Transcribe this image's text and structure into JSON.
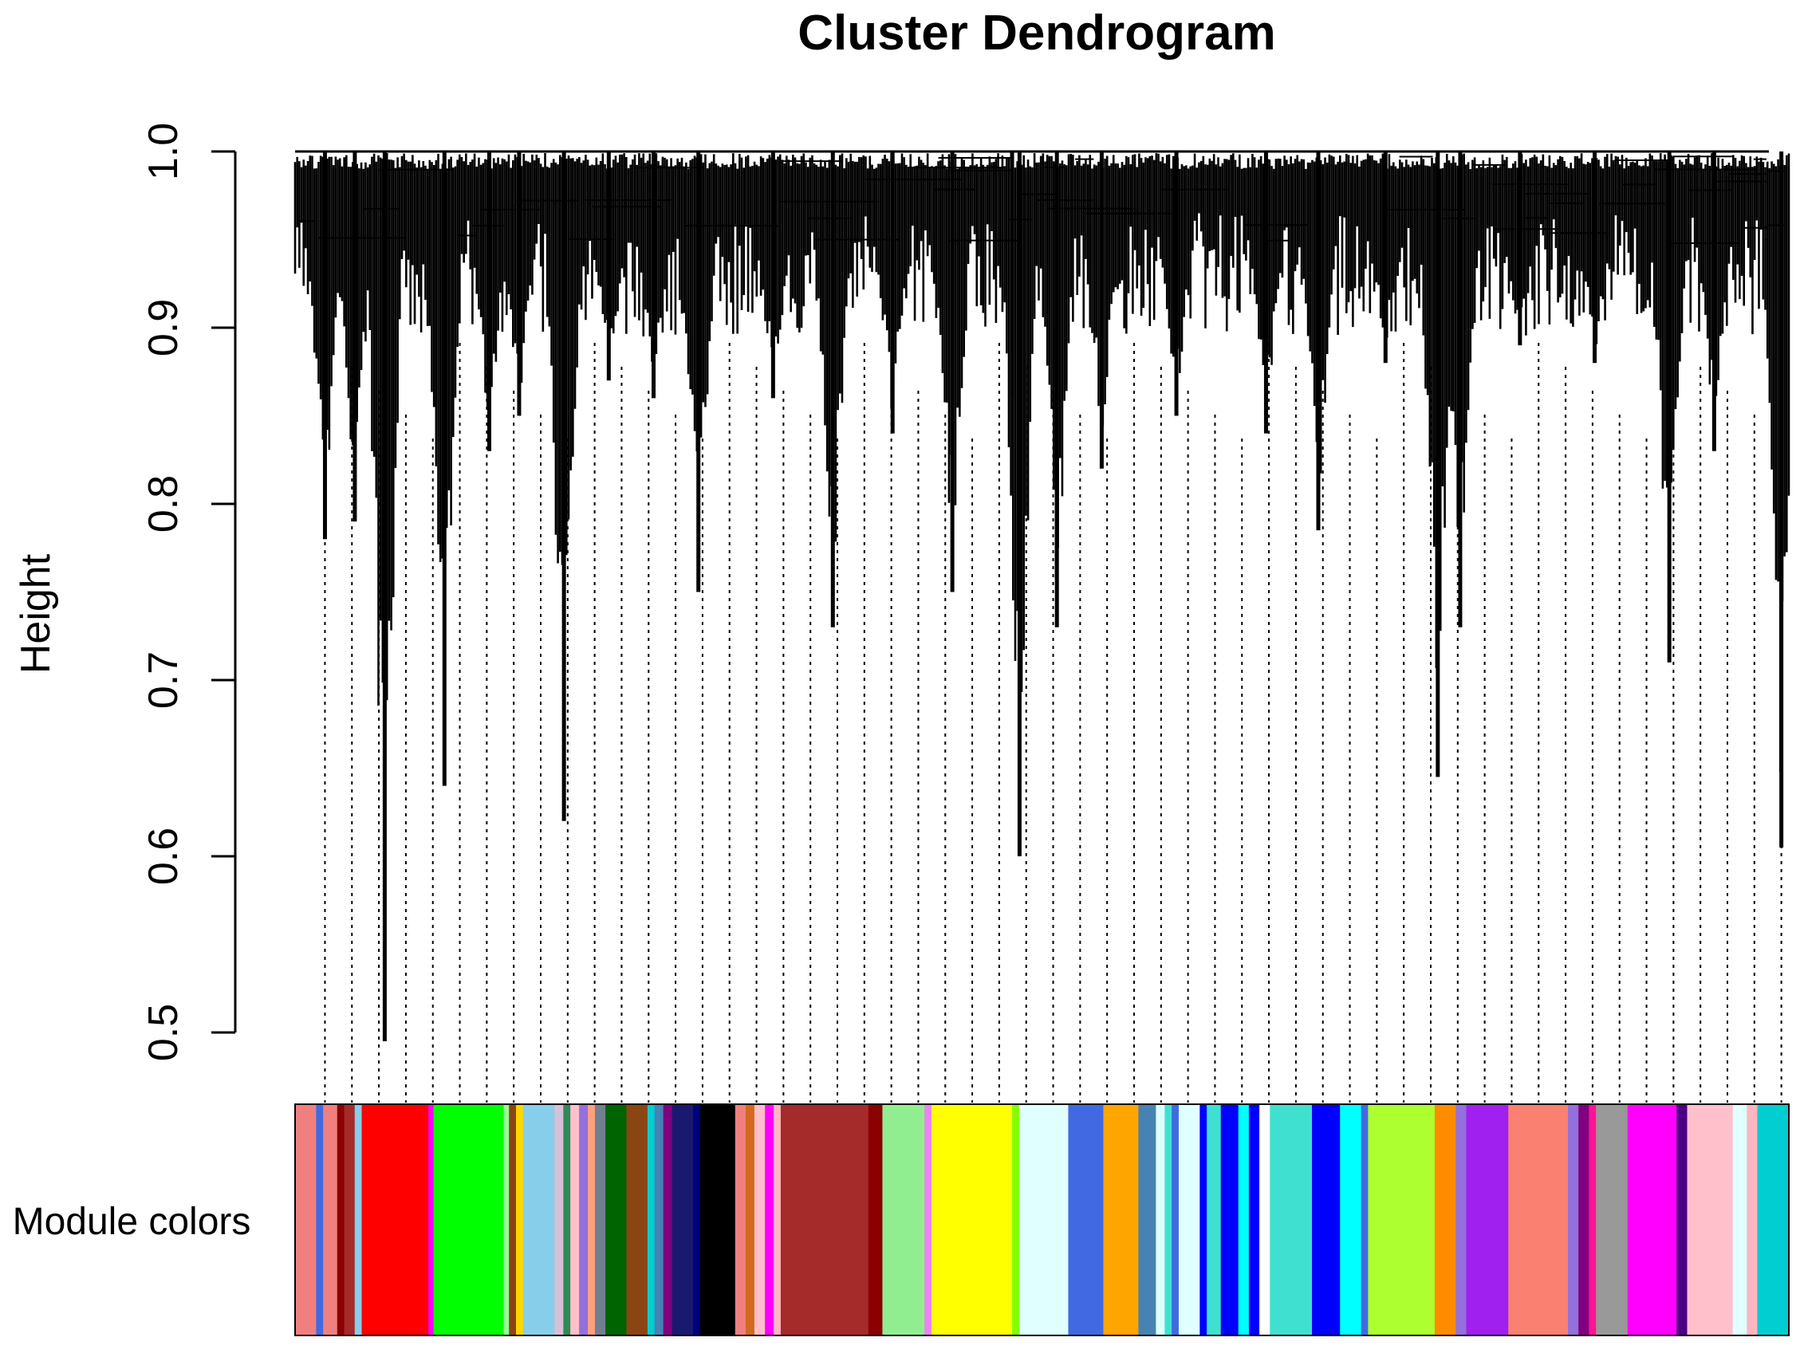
{
  "chart_data": {
    "type": "dendrogram",
    "title": "Cluster Dendrogram",
    "ylabel": "Height",
    "xlabel": "",
    "ylim": [
      0.5,
      1.0
    ],
    "yticks": [
      0.5,
      0.6,
      0.7,
      0.8,
      0.9,
      1.0
    ],
    "ytick_labels": [
      "0.5",
      "0.6",
      "0.7",
      "0.8",
      "0.9",
      "1.0"
    ],
    "merge_height_top": 1.0,
    "colorbar_label": "Module colors",
    "branches": [
      {
        "x": 0.02,
        "min": 0.78
      },
      {
        "x": 0.04,
        "min": 0.79
      },
      {
        "x": 0.06,
        "min": 0.495
      },
      {
        "x": 0.1,
        "min": 0.64
      },
      {
        "x": 0.13,
        "min": 0.83
      },
      {
        "x": 0.15,
        "min": 0.85
      },
      {
        "x": 0.18,
        "min": 0.62
      },
      {
        "x": 0.21,
        "min": 0.87
      },
      {
        "x": 0.24,
        "min": 0.86
      },
      {
        "x": 0.27,
        "min": 0.75
      },
      {
        "x": 0.32,
        "min": 0.86
      },
      {
        "x": 0.36,
        "min": 0.73
      },
      {
        "x": 0.4,
        "min": 0.84
      },
      {
        "x": 0.44,
        "min": 0.75
      },
      {
        "x": 0.48,
        "min": 0.86
      },
      {
        "x": 0.485,
        "min": 0.6
      },
      {
        "x": 0.51,
        "min": 0.73
      },
      {
        "x": 0.54,
        "min": 0.82
      },
      {
        "x": 0.59,
        "min": 0.85
      },
      {
        "x": 0.65,
        "min": 0.84
      },
      {
        "x": 0.685,
        "min": 0.785
      },
      {
        "x": 0.73,
        "min": 0.88
      },
      {
        "x": 0.765,
        "min": 0.645
      },
      {
        "x": 0.78,
        "min": 0.73
      },
      {
        "x": 0.82,
        "min": 0.89
      },
      {
        "x": 0.87,
        "min": 0.88
      },
      {
        "x": 0.92,
        "min": 0.71
      },
      {
        "x": 0.95,
        "min": 0.83
      },
      {
        "x": 0.995,
        "min": 0.605
      }
    ],
    "module_colors": [
      {
        "color": "#f08080",
        "width": 1.2
      },
      {
        "color": "#4169e1",
        "width": 0.4
      },
      {
        "color": "#f08080",
        "width": 0.8
      },
      {
        "color": "#8b0000",
        "width": 0.4
      },
      {
        "color": "#a52a2a",
        "width": 0.6
      },
      {
        "color": "#87ceeb",
        "width": 0.4
      },
      {
        "color": "#ff0000",
        "width": 3.8
      },
      {
        "color": "#ff00ff",
        "width": 0.3
      },
      {
        "color": "#00ff00",
        "width": 4.0
      },
      {
        "color": "#98fb98",
        "width": 0.3
      },
      {
        "color": "#8b4513",
        "width": 0.4
      },
      {
        "color": "#ffd700",
        "width": 0.4
      },
      {
        "color": "#87ceeb",
        "width": 1.8
      },
      {
        "color": "#d8bfd8",
        "width": 0.5
      },
      {
        "color": "#2e8b57",
        "width": 0.4
      },
      {
        "color": "#ffc0cb",
        "width": 0.5
      },
      {
        "color": "#9370db",
        "width": 0.5
      },
      {
        "color": "#ffa07a",
        "width": 0.4
      },
      {
        "color": "#708090",
        "width": 0.6
      },
      {
        "color": "#006400",
        "width": 1.2
      },
      {
        "color": "#8b4513",
        "width": 1.2
      },
      {
        "color": "#00ced1",
        "width": 0.4
      },
      {
        "color": "#4682b4",
        "width": 0.5
      },
      {
        "color": "#800080",
        "width": 0.5
      },
      {
        "color": "#191970",
        "width": 1.2
      },
      {
        "color": "#000080",
        "width": 0.4
      },
      {
        "color": "#000000",
        "width": 2.0
      },
      {
        "color": "#f08080",
        "width": 0.6
      },
      {
        "color": "#d2691e",
        "width": 0.5
      },
      {
        "color": "#ffc0cb",
        "width": 0.6
      },
      {
        "color": "#ff00ff",
        "width": 0.5
      },
      {
        "color": "#ffb6c1",
        "width": 0.4
      },
      {
        "color": "#a52a2a",
        "width": 5.0
      },
      {
        "color": "#8b0000",
        "width": 0.8
      },
      {
        "color": "#90ee90",
        "width": 2.4
      },
      {
        "color": "#ee82ee",
        "width": 0.4
      },
      {
        "color": "#ffff00",
        "width": 4.6
      },
      {
        "color": "#7fff00",
        "width": 0.4
      },
      {
        "color": "#e0ffff",
        "width": 2.8
      },
      {
        "color": "#4169e1",
        "width": 2.0
      },
      {
        "color": "#ffa500",
        "width": 2.0
      },
      {
        "color": "#4682b4",
        "width": 1.0
      },
      {
        "color": "#e0ffff",
        "width": 0.5
      },
      {
        "color": "#40e0d0",
        "width": 0.4
      },
      {
        "color": "#4169e1",
        "width": 0.4
      },
      {
        "color": "#e0ffff",
        "width": 1.2
      },
      {
        "color": "#0000ff",
        "width": 0.4
      },
      {
        "color": "#40e0d0",
        "width": 0.8
      },
      {
        "color": "#0000ff",
        "width": 1.0
      },
      {
        "color": "#00ffff",
        "width": 0.6
      },
      {
        "color": "#0000ff",
        "width": 0.6
      },
      {
        "color": "#ffffff",
        "width": 0.6
      },
      {
        "color": "#40e0d0",
        "width": 2.4
      },
      {
        "color": "#0000ff",
        "width": 1.6
      },
      {
        "color": "#00ffff",
        "width": 1.2
      },
      {
        "color": "#4169e1",
        "width": 0.4
      },
      {
        "color": "#adff2f",
        "width": 3.8
      },
      {
        "color": "#ff8c00",
        "width": 1.2
      },
      {
        "color": "#9370db",
        "width": 0.6
      },
      {
        "color": "#a020f0",
        "width": 2.4
      },
      {
        "color": "#fa8072",
        "width": 3.4
      },
      {
        "color": "#9370db",
        "width": 0.6
      },
      {
        "color": "#800080",
        "width": 0.6
      },
      {
        "color": "#ff1493",
        "width": 0.4
      },
      {
        "color": "#999999",
        "width": 1.8
      },
      {
        "color": "#ff00ff",
        "width": 2.8
      },
      {
        "color": "#4b0082",
        "width": 0.6
      },
      {
        "color": "#ffc0cb",
        "width": 2.6
      },
      {
        "color": "#e0ffff",
        "width": 0.8
      },
      {
        "color": "#ffb6c1",
        "width": 0.6
      },
      {
        "color": "#00ced1",
        "width": 1.8
      }
    ]
  }
}
